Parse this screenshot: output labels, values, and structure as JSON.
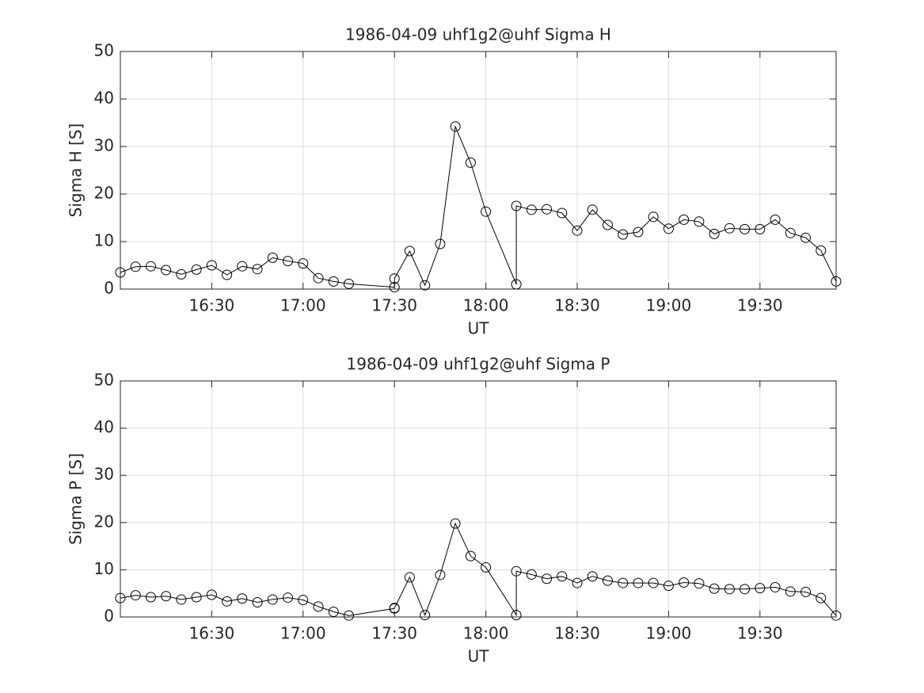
{
  "chart_data": [
    {
      "type": "line",
      "title": "1986-04-09  uhf1g2@uhf Sigma H",
      "xlabel": "UT",
      "ylabel": "Sigma H [S]",
      "x": [
        "16:00",
        "16:05",
        "16:10",
        "16:15",
        "16:20",
        "16:25",
        "16:30",
        "16:35",
        "16:40",
        "16:45",
        "16:50",
        "16:55",
        "17:00",
        "17:05",
        "17:10",
        "17:15",
        "17:30",
        "17:30",
        "17:35",
        "17:40",
        "17:45",
        "17:50",
        "17:55",
        "18:00",
        "18:10",
        "18:10",
        "18:15",
        "18:20",
        "18:25",
        "18:30",
        "18:35",
        "18:40",
        "18:45",
        "18:50",
        "18:55",
        "19:00",
        "19:05",
        "19:10",
        "19:15",
        "19:20",
        "19:25",
        "19:30",
        "19:35",
        "19:40",
        "19:45",
        "19:50",
        "19:55"
      ],
      "values": [
        3.5,
        4.7,
        4.8,
        4.0,
        3.1,
        4.1,
        5.0,
        3.0,
        4.8,
        4.2,
        6.6,
        5.9,
        5.4,
        2.3,
        1.6,
        1.1,
        0.4,
        2.2,
        8.0,
        0.8,
        9.5,
        34.2,
        26.6,
        16.3,
        1.0,
        17.5,
        16.7,
        16.8,
        16.0,
        12.3,
        16.7,
        13.5,
        11.5,
        12.0,
        15.2,
        12.7,
        14.6,
        14.2,
        11.6,
        12.8,
        12.6,
        12.6,
        14.6,
        11.8,
        10.8,
        8.1,
        1.6
      ],
      "color": "#000000",
      "marker": "o",
      "xlim": [
        "16:00",
        "19:55"
      ],
      "xticks": [
        "16:30",
        "17:00",
        "17:30",
        "18:00",
        "18:30",
        "19:00",
        "19:30"
      ],
      "ylim": [
        0,
        50
      ],
      "yticks": [
        0,
        10,
        20,
        30,
        40,
        50
      ],
      "grid": true
    },
    {
      "type": "line",
      "title": "1986-04-09  uhf1g2@uhf Sigma P",
      "xlabel": "UT",
      "ylabel": "Sigma P [S]",
      "x": [
        "16:00",
        "16:05",
        "16:10",
        "16:15",
        "16:20",
        "16:25",
        "16:30",
        "16:35",
        "16:40",
        "16:45",
        "16:50",
        "16:55",
        "17:00",
        "17:05",
        "17:10",
        "17:15",
        "17:30",
        "17:30",
        "17:35",
        "17:40",
        "17:45",
        "17:50",
        "17:55",
        "18:00",
        "18:10",
        "18:10",
        "18:15",
        "18:20",
        "18:25",
        "18:30",
        "18:35",
        "18:40",
        "18:45",
        "18:50",
        "18:55",
        "19:00",
        "19:05",
        "19:10",
        "19:15",
        "19:20",
        "19:25",
        "19:30",
        "19:35",
        "19:40",
        "19:45",
        "19:50",
        "19:55"
      ],
      "values": [
        4.0,
        4.6,
        4.2,
        4.4,
        3.7,
        4.2,
        4.7,
        3.3,
        3.9,
        3.1,
        3.7,
        4.1,
        3.6,
        2.2,
        1.1,
        0.3,
        1.8,
        1.9,
        8.4,
        0.4,
        8.9,
        19.8,
        12.9,
        10.5,
        0.4,
        9.7,
        9.0,
        8.1,
        8.6,
        7.2,
        8.6,
        7.7,
        7.2,
        7.2,
        7.2,
        6.6,
        7.3,
        7.1,
        6.0,
        5.9,
        5.9,
        6.1,
        6.3,
        5.4,
        5.3,
        4.0,
        0.3
      ],
      "color": "#000000",
      "marker": "o",
      "xlim": [
        "16:00",
        "19:55"
      ],
      "xticks": [
        "16:30",
        "17:00",
        "17:30",
        "18:00",
        "18:30",
        "19:00",
        "19:30"
      ],
      "ylim": [
        0,
        50
      ],
      "yticks": [
        0,
        10,
        20,
        30,
        40,
        50
      ],
      "grid": true
    }
  ]
}
